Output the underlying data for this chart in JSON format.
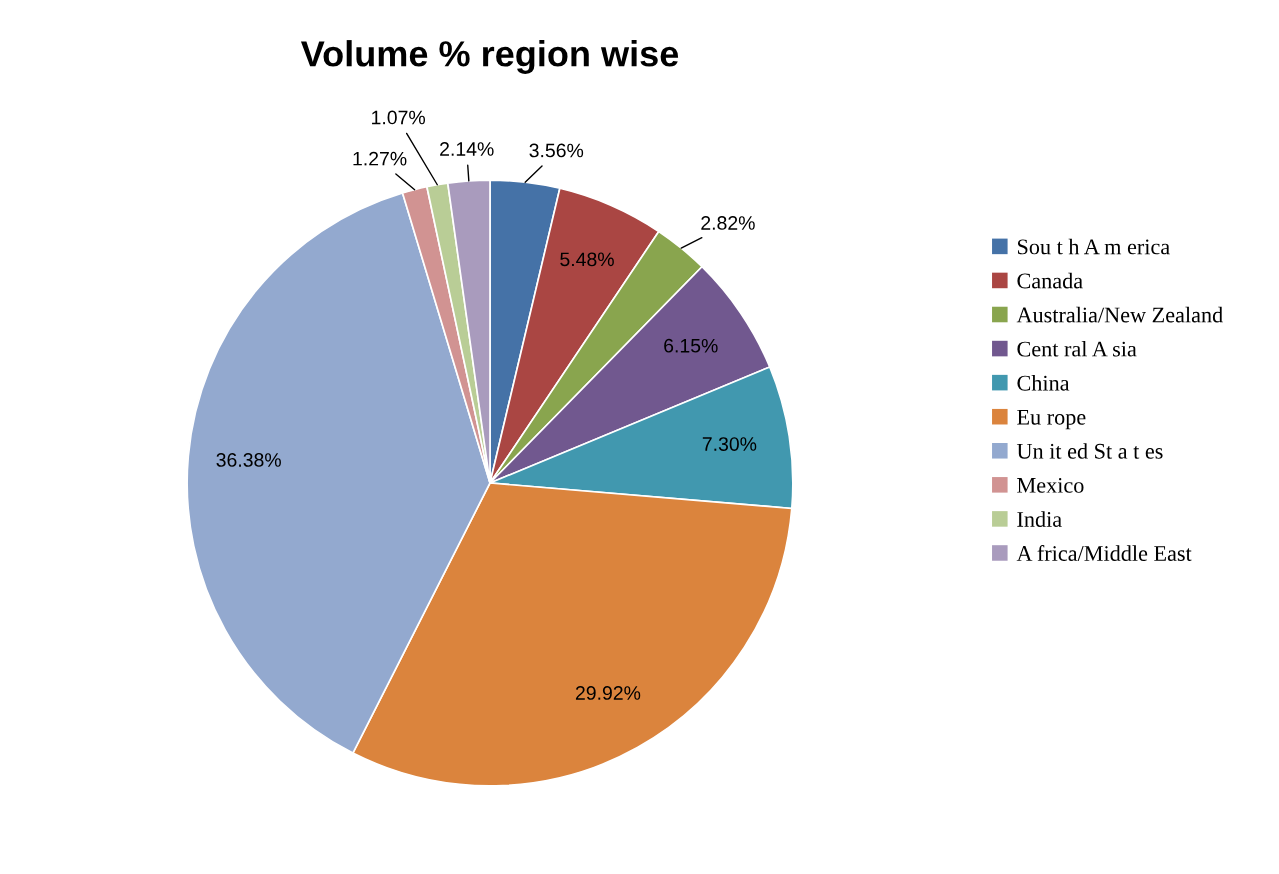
{
  "chart_data": {
    "type": "pie",
    "title": "Volume % region wise",
    "categories": [
      "Sou t h A m erica",
      "Canada",
      "Australia/New Zealand",
      "Cent ral A sia",
      "China",
      "Eu rope",
      "Un it ed St a t es",
      "Mexico",
      "India",
      "A frica/Middle East"
    ],
    "values": [
      3.56,
      5.48,
      2.82,
      6.15,
      7.3,
      29.92,
      36.38,
      1.27,
      1.07,
      2.14
    ],
    "value_labels": [
      "3.56%",
      "5.48%",
      "2.82%",
      "6.15%",
      "7.30%",
      "29.92%",
      "36.38%",
      "1.27%",
      "1.07%",
      "2.14%"
    ],
    "colors": [
      "#4572a7",
      "#aa4643",
      "#89a54e",
      "#71588f",
      "#4198af",
      "#db843d",
      "#93a9cf",
      "#d19392",
      "#b9cd96",
      "#a99bbd"
    ],
    "legend": "right"
  }
}
